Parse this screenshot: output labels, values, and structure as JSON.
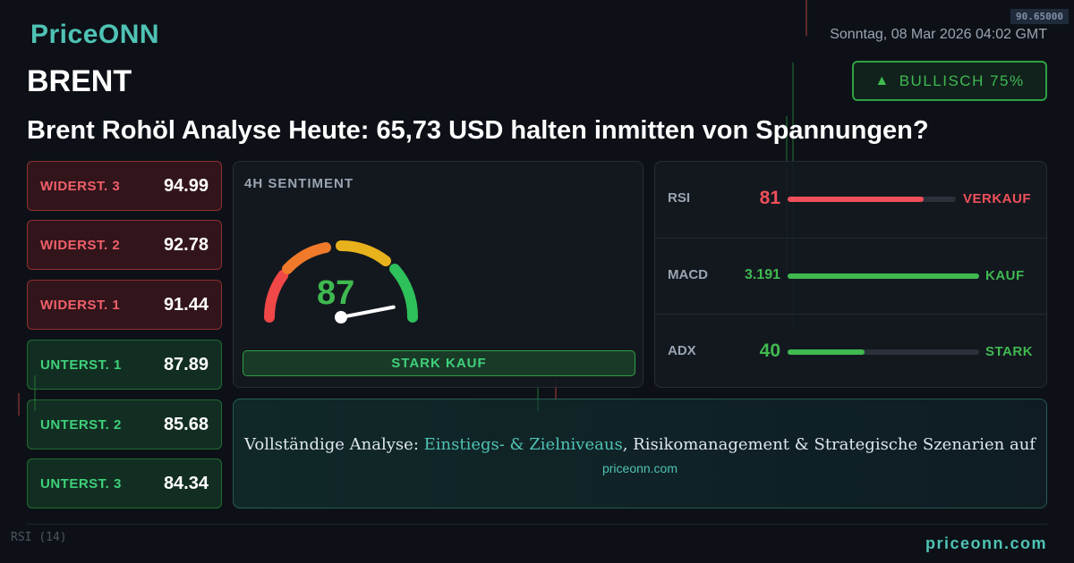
{
  "brand": {
    "logo": "PriceONN",
    "footer_url": "priceonn.com"
  },
  "header": {
    "datetime": "Sonntag, 08 Mar 2026 04:02 GMT",
    "symbol": "BRENT",
    "bias": {
      "icon": "triangle-up-icon",
      "label": "BULLISCH 75%"
    }
  },
  "headline": "Brent Rohöl Analyse Heute: 65,73 USD halten inmitten von Spannungen?",
  "levels": [
    {
      "label": "WIDERST. 3",
      "value": "94.99",
      "type": "resistance"
    },
    {
      "label": "WIDERST. 2",
      "value": "92.78",
      "type": "resistance"
    },
    {
      "label": "WIDERST. 1",
      "value": "91.44",
      "type": "resistance"
    },
    {
      "label": "UNTERST. 1",
      "value": "87.89",
      "type": "support"
    },
    {
      "label": "UNTERST. 2",
      "value": "85.68",
      "type": "support"
    },
    {
      "label": "UNTERST. 3",
      "value": "84.34",
      "type": "support"
    }
  ],
  "sentiment": {
    "title": "4H SENTIMENT",
    "value": 87,
    "value_text": "87",
    "signal": "STARK KAUF"
  },
  "indicators": [
    {
      "name": "RSI",
      "value": "81",
      "fill": 0.81,
      "signal": "VERKAUF",
      "color": "#f0505a"
    },
    {
      "name": "MACD",
      "value": "3.191",
      "fill": 1.0,
      "signal": "KAUF",
      "color": "#3fb950"
    },
    {
      "name": "ADX",
      "value": "40",
      "fill": 0.4,
      "signal": "STARK",
      "color": "#3fb950"
    }
  ],
  "cta": {
    "prefix": "Vollständige Analyse: ",
    "highlight": "Einstiegs- & Zielniveaus",
    "suffix": ", Risikomanagement & Strategische Szenarien auf",
    "link": "priceonn.com"
  },
  "background": {
    "price_tag": "90.65000",
    "rsi_label": "RSI",
    "rsi_period": "(14)"
  },
  "colors": {
    "accent": "#4fc3b5",
    "bullish": "#3fb950",
    "bearish": "#f0505a"
  }
}
